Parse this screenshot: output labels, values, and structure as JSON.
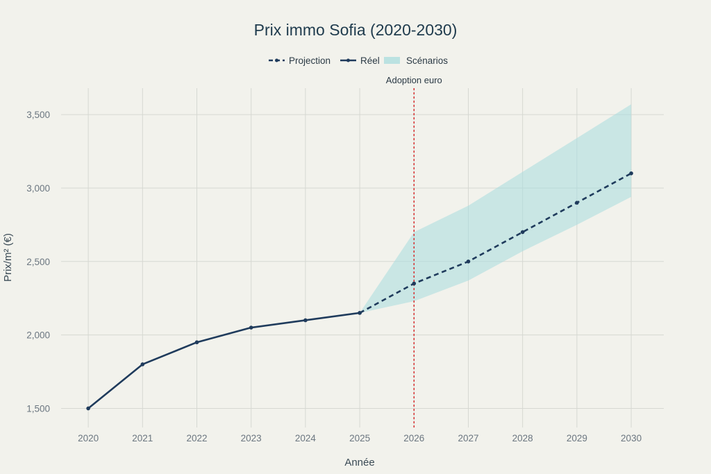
{
  "chart_data": {
    "type": "line",
    "title": "Prix immo Sofia (2020-2030)",
    "xlabel": "Année",
    "ylabel": "Prix/m² (€)",
    "x": [
      2020,
      2021,
      2022,
      2023,
      2024,
      2025,
      2026,
      2027,
      2028,
      2029,
      2030
    ],
    "xlim": [
      2019.5,
      2030.6
    ],
    "ylim": [
      1370,
      3680
    ],
    "yticks": [
      1500,
      2000,
      2500,
      3000,
      3500
    ],
    "ytick_labels": [
      "1,500",
      "2,000",
      "2,500",
      "3,000",
      "3,500"
    ],
    "grid": true,
    "legend_position": "top-center",
    "series": [
      {
        "name": "Réel",
        "style": "solid",
        "color": "#1f3b5c",
        "x": [
          2020,
          2021,
          2022,
          2023,
          2024,
          2025
        ],
        "values": [
          1500,
          1800,
          1950,
          2050,
          2100,
          2150
        ]
      },
      {
        "name": "Projection",
        "style": "dashed",
        "color": "#1f3b5c",
        "x": [
          2025,
          2026,
          2027,
          2028,
          2029,
          2030
        ],
        "values": [
          2150,
          2350,
          2500,
          2700,
          2900,
          3100
        ]
      }
    ],
    "band": {
      "name": "Scénarios",
      "color": "#a8dcde",
      "x": [
        2025,
        2026,
        2027,
        2028,
        2029,
        2030
      ],
      "upper": [
        2150,
        2700,
        2880,
        3110,
        3340,
        3570
      ],
      "lower": [
        2150,
        2230,
        2370,
        2570,
        2750,
        2940
      ]
    },
    "annotation": {
      "text": "Adoption euro",
      "x": 2026,
      "color": "#d62f2f",
      "style": "dotted"
    },
    "legend_order": [
      "Projection",
      "Réel",
      "Scénarios"
    ]
  }
}
